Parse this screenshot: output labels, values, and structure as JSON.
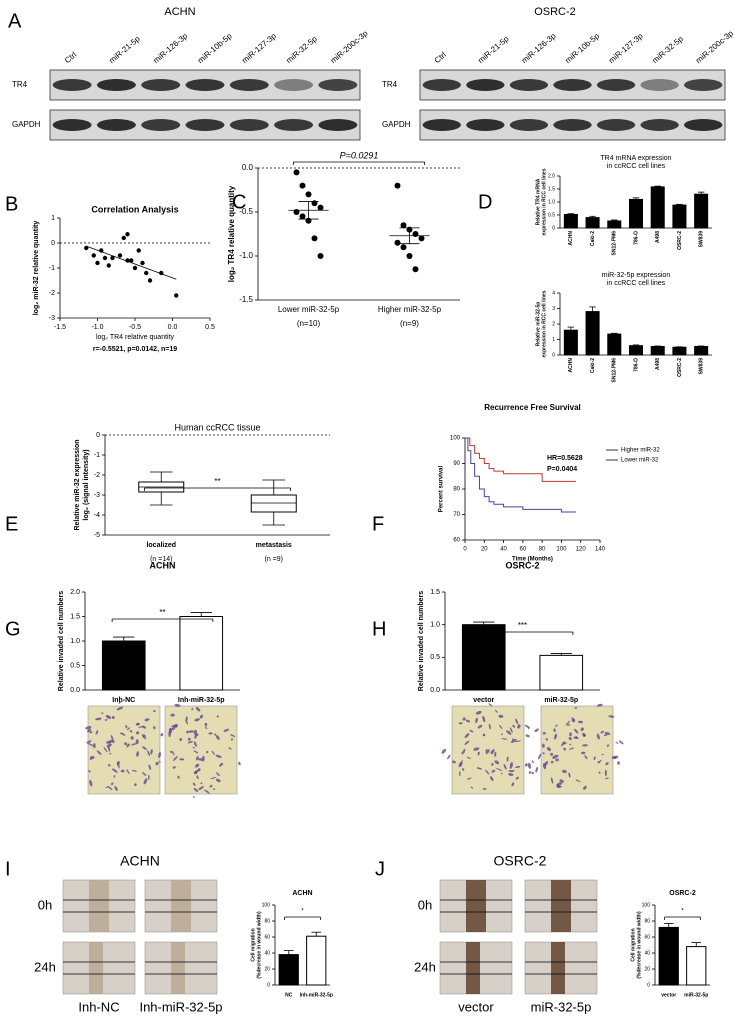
{
  "panel_labels": [
    "A",
    "B",
    "C",
    "D",
    "E",
    "F",
    "G",
    "H",
    "I",
    "J"
  ],
  "blots": [
    {
      "title": "ACHN",
      "lanes": [
        "Ctrl",
        "miR-21-5p",
        "miR-126-3p",
        "miR-10b-5p",
        "miR-127-3p",
        "miR-32-5p",
        "miR-200c-3p"
      ],
      "rows": [
        "TR4",
        "GAPDH"
      ]
    },
    {
      "title": "OSRC-2",
      "lanes": [
        "Ctrl",
        "miR-21-5p",
        "miR-126-3p",
        "miR-10b-5p",
        "miR-127-3p",
        "miR-32-5p",
        "miR-200c-3p"
      ],
      "rows": [
        "TR4",
        "GAPDH"
      ]
    }
  ],
  "wound_assays": [
    {
      "title": "ACHN",
      "times": [
        "0h",
        "24h"
      ],
      "groups": [
        "Inh-NC",
        "Inh-miR-32-5p"
      ]
    },
    {
      "title": "OSRC-2",
      "times": [
        "0h",
        "24h"
      ],
      "groups": [
        "vector",
        "miR-32-5p"
      ]
    }
  ],
  "chart_data": [
    {
      "type": "scatter",
      "title": "Correlation Analysis",
      "xlabel": "log₂ TR4 relative quantity",
      "ylabel": "log₂ miR-32 relative quantity",
      "annotation": "r=-0.5521, p=0.0142, n=19",
      "x": [
        -1.15,
        -1.05,
        -1.0,
        -0.95,
        -0.9,
        -0.85,
        -0.8,
        -0.7,
        -0.65,
        -0.6,
        -0.6,
        -0.55,
        -0.5,
        -0.45,
        -0.4,
        -0.35,
        -0.3,
        -0.15,
        0.05
      ],
      "values": [
        -0.2,
        -0.5,
        -0.8,
        -0.3,
        -0.6,
        -0.9,
        -0.6,
        -0.5,
        0.2,
        0.35,
        -0.7,
        -0.7,
        -1.0,
        -0.3,
        -0.8,
        -1.2,
        -1.5,
        -1.2,
        -2.1
      ],
      "xlim": [
        -1.5,
        0.5
      ],
      "xticks": [
        -1.5,
        {
          "value": -1,
          "label": "-1.0"
        },
        -0.5,
        {
          "value": 0,
          "label": "0.0"
        },
        0.5
      ],
      "ylim": [
        -3,
        1
      ],
      "yticks": [
        -3,
        -2,
        -1,
        0,
        1
      ],
      "hline": 0,
      "trendline": true,
      "color": "#000000"
    },
    {
      "type": "dot",
      "ylabel": "log₂ TR4 relative quantity",
      "annotation": "P=0.0291",
      "categories": [
        "Lower miR-32-5p",
        "Higher miR-32-5p"
      ],
      "sample_sizes": [
        "(n=10)",
        "(n=9)"
      ],
      "groups": [
        [
          -0.05,
          -0.2,
          -0.3,
          -0.4,
          -0.45,
          -0.5,
          -0.55,
          -0.6,
          -0.8,
          -1.0
        ],
        [
          -0.2,
          -0.65,
          -0.7,
          -0.75,
          -0.8,
          -0.85,
          -0.9,
          -1.0,
          -1.15
        ]
      ],
      "means": [
        -0.48,
        -0.77
      ],
      "errors": [
        0.1,
        0.09
      ],
      "ylim": [
        -1.5,
        0
      ],
      "yticks": [
        {
          "value": -1.5,
          "label": "-1.5"
        },
        {
          "value": -1,
          "label": "-1.0"
        },
        {
          "value": -0.5,
          "label": "-0.5"
        },
        {
          "value": 0,
          "label": "0.0"
        }
      ],
      "hline": 0,
      "color": "#000000"
    },
    {
      "type": "bar",
      "title": [
        "TR4 mRNA expression",
        "in ccRCC cell lines"
      ],
      "ylabel": [
        "Relative TR4 mRNA",
        "expression in RCC cell lines"
      ],
      "categories": [
        "ACHN",
        "Caki-2",
        "SN12-PM6",
        "786-O",
        "A498",
        "OSRC-2",
        "SW839"
      ],
      "values": [
        0.52,
        0.4,
        0.27,
        1.1,
        1.58,
        0.88,
        1.3
      ],
      "errors": [
        0.03,
        0.05,
        0.04,
        0.06,
        0.03,
        0.03,
        0.08
      ],
      "ylim": [
        0,
        2
      ],
      "yticks": [
        0,
        0.5,
        {
          "value": 1,
          "label": "1.0"
        },
        1.5,
        {
          "value": 2,
          "label": "2.0"
        }
      ],
      "color": "#000000",
      "rotate_labels": true
    },
    {
      "type": "bar",
      "title": [
        "miR-32-5p expression",
        "in ccRCC cell lines"
      ],
      "ylabel": [
        "Relative miR-32-5p",
        "expression in RCC cell lines"
      ],
      "categories": [
        "ACHN",
        "Caki-2",
        "SN12-PM6",
        "786-O",
        "A498",
        "OSRC-2",
        "SW839"
      ],
      "values": [
        1.6,
        2.8,
        1.35,
        0.6,
        0.55,
        0.5,
        0.55
      ],
      "errors": [
        0.2,
        0.3,
        0.05,
        0.05,
        0.03,
        0.03,
        0.03
      ],
      "ylim": [
        0,
        4
      ],
      "yticks": [
        0,
        1,
        2,
        3,
        4
      ],
      "color": "#000000",
      "rotate_labels": true
    },
    {
      "type": "box",
      "title": "Human ccRCC tissue",
      "ylabel": [
        "Relative miR-32 expression",
        "log₂ (signal intensity)"
      ],
      "annotation": "**",
      "categories": [
        "localized",
        "metastasis"
      ],
      "sample_sizes": [
        "(n =14)",
        "(n =9)"
      ],
      "boxes": [
        {
          "min": -3.5,
          "q1": -2.85,
          "median": -2.6,
          "q3": -2.35,
          "max": -1.85
        },
        {
          "min": -4.5,
          "q1": -3.85,
          "median": -3.4,
          "q3": -3.0,
          "max": -2.25
        }
      ],
      "ylim": [
        -5,
        0
      ],
      "yticks": [
        -5,
        -4,
        -3,
        -2,
        -1,
        0
      ],
      "hline": 0
    },
    {
      "type": "step",
      "title": "Recurrence Free Survival",
      "xlabel": "Time (Months)",
      "ylabel": "Percent survival",
      "annotations": [
        "HR=0.5628",
        "P=0.0404"
      ],
      "series": [
        {
          "name": "Higher miR-32",
          "color": "#c0392b",
          "x": [
            0,
            5,
            10,
            15,
            20,
            25,
            30,
            40,
            60,
            80,
            100,
            115
          ],
          "values": [
            100,
            97,
            94,
            92,
            90,
            88,
            87,
            86,
            86,
            83,
            83,
            83
          ]
        },
        {
          "name": "Lower miR-32",
          "color": "#3b4a9c",
          "x": [
            0,
            3,
            6,
            10,
            15,
            20,
            25,
            30,
            40,
            50,
            60,
            80,
            100,
            115
          ],
          "values": [
            100,
            95,
            90,
            85,
            80,
            77,
            75,
            74,
            73,
            73,
            72,
            72,
            71,
            71
          ]
        }
      ],
      "xlim": [
        0,
        140
      ],
      "xticks": [
        0,
        20,
        40,
        60,
        80,
        100,
        120,
        140
      ],
      "ylim": [
        60,
        100
      ],
      "yticks": [
        60,
        70,
        80,
        90,
        100
      ]
    },
    {
      "type": "bar",
      "title": "ACHN",
      "ylabel": "Relative invaded cell numbers",
      "annotation": "**",
      "categories": [
        "Inh-NC",
        "Inh-miR-32-5p"
      ],
      "values": [
        1.0,
        1.5
      ],
      "errors": [
        0.08,
        0.08
      ],
      "colors": [
        "#000000",
        "#ffffff"
      ],
      "ylim": [
        0,
        2
      ],
      "yticks": [
        {
          "value": 0,
          "label": "0.0"
        },
        0.5,
        {
          "value": 1,
          "label": "1.0"
        },
        1.5,
        {
          "value": 2,
          "label": "2.0"
        }
      ]
    },
    {
      "type": "bar",
      "title": "OSRC-2",
      "ylabel": "Relative invaded cell numbers",
      "annotation": "***",
      "categories": [
        "vector",
        "miR-32-5p"
      ],
      "values": [
        1.0,
        0.53
      ],
      "errors": [
        0.04,
        0.03
      ],
      "colors": [
        "#000000",
        "#ffffff"
      ],
      "ylim": [
        0,
        1.5
      ],
      "yticks": [
        {
          "value": 0,
          "label": "0.0"
        },
        0.5,
        {
          "value": 1,
          "label": "1.0"
        },
        1.5
      ]
    },
    {
      "type": "bar",
      "title": "ACHN",
      "ylabel": [
        "Cell migration",
        "(%decrease in wound width)"
      ],
      "annotation": "*",
      "categories": [
        "NC",
        "Inh-miR-32-5p"
      ],
      "values": [
        38,
        61
      ],
      "errors": [
        5,
        5
      ],
      "colors": [
        "#000000",
        "#ffffff"
      ],
      "ylim": [
        0,
        100
      ],
      "yticks": [
        0,
        20,
        40,
        60,
        80,
        100
      ]
    },
    {
      "type": "bar",
      "title": "OSRC-2",
      "ylabel": [
        "Cell migration",
        "(%decrease in wound width)"
      ],
      "annotation": "*",
      "categories": [
        "vector",
        "miR-32-5p"
      ],
      "values": [
        72,
        48
      ],
      "errors": [
        5,
        5
      ],
      "colors": [
        "#000000",
        "#ffffff"
      ],
      "ylim": [
        0,
        100
      ],
      "yticks": [
        0,
        20,
        40,
        60,
        80,
        100
      ]
    }
  ]
}
